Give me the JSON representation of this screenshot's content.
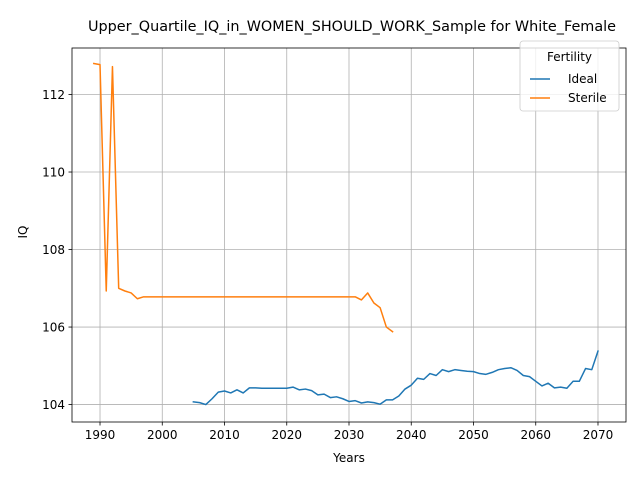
{
  "chart_data": {
    "type": "line",
    "title": "Upper_Quartile_IQ_in_WOMEN_SHOULD_WORK_Sample for White_Female",
    "xlabel": "Years",
    "ylabel": "IQ",
    "xlim": [
      1985.5,
      2074.5
    ],
    "ylim": [
      103.55,
      113.2
    ],
    "x_ticks": [
      1990,
      2000,
      2010,
      2020,
      2030,
      2040,
      2050,
      2060,
      2070
    ],
    "y_ticks": [
      104,
      106,
      108,
      110,
      112
    ],
    "grid": true,
    "legend": {
      "title": "Fertility",
      "placement": "upper-right"
    },
    "series": [
      {
        "name": "Ideal",
        "color": "#1f77b4",
        "x": [
          2005,
          2006,
          2007,
          2008,
          2009,
          2010,
          2011,
          2012,
          2013,
          2014,
          2015,
          2016,
          2017,
          2018,
          2019,
          2020,
          2021,
          2022,
          2023,
          2024,
          2025,
          2026,
          2027,
          2028,
          2029,
          2030,
          2031,
          2032,
          2033,
          2034,
          2035,
          2036,
          2037,
          2038,
          2039,
          2040,
          2041,
          2042,
          2043,
          2044,
          2045,
          2046,
          2047,
          2048,
          2049,
          2050,
          2051,
          2052,
          2053,
          2054,
          2055,
          2056,
          2057,
          2058,
          2059,
          2060,
          2061,
          2062,
          2063,
          2064,
          2065,
          2066,
          2067,
          2068,
          2069,
          2070
        ],
        "values": [
          104.07,
          104.05,
          104.0,
          104.15,
          104.32,
          104.35,
          104.3,
          104.38,
          104.3,
          104.43,
          104.43,
          104.42,
          104.42,
          104.42,
          104.42,
          104.42,
          104.45,
          104.38,
          104.4,
          104.36,
          104.25,
          104.27,
          104.18,
          104.2,
          104.15,
          104.08,
          104.1,
          104.04,
          104.07,
          104.05,
          104.01,
          104.12,
          104.12,
          104.22,
          104.4,
          104.5,
          104.68,
          104.65,
          104.8,
          104.75,
          104.9,
          104.85,
          104.9,
          104.88,
          104.86,
          104.85,
          104.8,
          104.78,
          104.83,
          104.9,
          104.93,
          104.95,
          104.88,
          104.75,
          104.72,
          104.6,
          104.48,
          104.55,
          104.43,
          104.45,
          104.42,
          104.6,
          104.6,
          104.93,
          104.9,
          105.38
        ]
      },
      {
        "name": "Sterile",
        "color": "#ff7f0e",
        "x": [
          1989,
          1990,
          1991,
          1992,
          1993,
          1994,
          1995,
          1996,
          1997,
          1998,
          1999,
          2000,
          2001,
          2002,
          2003,
          2004,
          2005,
          2006,
          2007,
          2008,
          2009,
          2010,
          2011,
          2012,
          2013,
          2014,
          2015,
          2016,
          2017,
          2018,
          2019,
          2020,
          2021,
          2022,
          2023,
          2024,
          2025,
          2026,
          2027,
          2028,
          2029,
          2030,
          2031,
          2032,
          2033,
          2034,
          2035,
          2036,
          2037
        ],
        "values": [
          112.8,
          112.77,
          106.93,
          112.72,
          107.0,
          106.93,
          106.88,
          106.73,
          106.78,
          106.78,
          106.78,
          106.78,
          106.78,
          106.78,
          106.78,
          106.78,
          106.78,
          106.78,
          106.78,
          106.78,
          106.78,
          106.78,
          106.78,
          106.78,
          106.78,
          106.78,
          106.78,
          106.78,
          106.78,
          106.78,
          106.78,
          106.78,
          106.78,
          106.78,
          106.78,
          106.78,
          106.78,
          106.78,
          106.78,
          106.78,
          106.78,
          106.78,
          106.78,
          106.7,
          106.88,
          106.62,
          106.5,
          106.0,
          105.88
        ]
      }
    ]
  }
}
